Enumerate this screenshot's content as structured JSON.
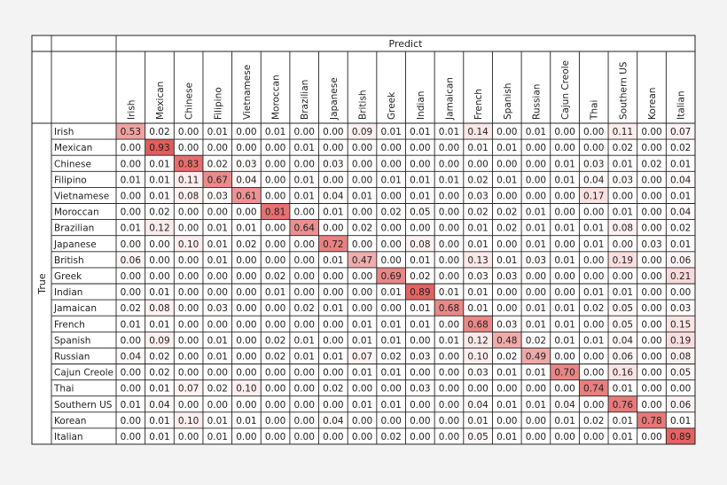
{
  "chart_data": {
    "type": "heatmap",
    "title": "",
    "xlabel": "Predict",
    "ylabel": "True",
    "categories": [
      "Irish",
      "Mexican",
      "Chinese",
      "Filipino",
      "Vietnamese",
      "Moroccan",
      "Brazilian",
      "Japanese",
      "British",
      "Greek",
      "Indian",
      "Jamaican",
      "French",
      "Spanish",
      "Russian",
      "Cajun Creole",
      "Thai",
      "Southern US",
      "Korean",
      "Italian"
    ],
    "matrix": [
      [
        0.53,
        0.02,
        0.0,
        0.01,
        0.0,
        0.01,
        0.0,
        0.0,
        0.09,
        0.01,
        0.01,
        0.01,
        0.14,
        0.0,
        0.01,
        0.0,
        0.0,
        0.11,
        0.0,
        0.07
      ],
      [
        0.0,
        0.93,
        0.0,
        0.0,
        0.0,
        0.0,
        0.01,
        0.0,
        0.0,
        0.0,
        0.0,
        0.0,
        0.01,
        0.01,
        0.0,
        0.0,
        0.0,
        0.02,
        0.0,
        0.02
      ],
      [
        0.0,
        0.01,
        0.83,
        0.02,
        0.03,
        0.0,
        0.0,
        0.03,
        0.0,
        0.0,
        0.0,
        0.0,
        0.0,
        0.0,
        0.0,
        0.01,
        0.03,
        0.01,
        0.02,
        0.01
      ],
      [
        0.01,
        0.01,
        0.11,
        0.67,
        0.04,
        0.0,
        0.01,
        0.0,
        0.0,
        0.01,
        0.01,
        0.01,
        0.02,
        0.01,
        0.0,
        0.01,
        0.04,
        0.03,
        0.0,
        0.04
      ],
      [
        0.0,
        0.01,
        0.08,
        0.03,
        0.61,
        0.0,
        0.01,
        0.04,
        0.01,
        0.0,
        0.01,
        0.0,
        0.03,
        0.0,
        0.0,
        0.0,
        0.17,
        0.0,
        0.0,
        0.01
      ],
      [
        0.0,
        0.02,
        0.0,
        0.0,
        0.0,
        0.81,
        0.0,
        0.01,
        0.0,
        0.02,
        0.05,
        0.0,
        0.02,
        0.02,
        0.01,
        0.0,
        0.0,
        0.01,
        0.0,
        0.04
      ],
      [
        0.01,
        0.12,
        0.0,
        0.01,
        0.01,
        0.0,
        0.64,
        0.0,
        0.02,
        0.0,
        0.0,
        0.0,
        0.01,
        0.02,
        0.01,
        0.01,
        0.01,
        0.08,
        0.0,
        0.02
      ],
      [
        0.0,
        0.0,
        0.1,
        0.01,
        0.02,
        0.0,
        0.0,
        0.72,
        0.0,
        0.0,
        0.08,
        0.0,
        0.01,
        0.0,
        0.01,
        0.0,
        0.01,
        0.0,
        0.03,
        0.01
      ],
      [
        0.06,
        0.0,
        0.0,
        0.01,
        0.0,
        0.0,
        0.0,
        0.01,
        0.47,
        0.0,
        0.01,
        0.0,
        0.13,
        0.01,
        0.03,
        0.01,
        0.0,
        0.19,
        0.0,
        0.06
      ],
      [
        0.0,
        0.0,
        0.0,
        0.0,
        0.0,
        0.02,
        0.0,
        0.0,
        0.0,
        0.69,
        0.02,
        0.0,
        0.03,
        0.03,
        0.0,
        0.0,
        0.0,
        0.0,
        0.0,
        0.21
      ],
      [
        0.0,
        0.01,
        0.0,
        0.0,
        0.0,
        0.01,
        0.0,
        0.0,
        0.0,
        0.01,
        0.89,
        0.01,
        0.01,
        0.0,
        0.0,
        0.0,
        0.01,
        0.01,
        0.0,
        0.0
      ],
      [
        0.02,
        0.08,
        0.0,
        0.03,
        0.0,
        0.0,
        0.02,
        0.01,
        0.0,
        0.0,
        0.01,
        0.68,
        0.01,
        0.0,
        0.01,
        0.01,
        0.02,
        0.05,
        0.0,
        0.03
      ],
      [
        0.01,
        0.01,
        0.0,
        0.0,
        0.0,
        0.0,
        0.0,
        0.0,
        0.01,
        0.01,
        0.01,
        0.0,
        0.68,
        0.03,
        0.01,
        0.01,
        0.0,
        0.05,
        0.0,
        0.15
      ],
      [
        0.0,
        0.09,
        0.0,
        0.01,
        0.0,
        0.02,
        0.01,
        0.0,
        0.01,
        0.01,
        0.0,
        0.01,
        0.12,
        0.48,
        0.02,
        0.01,
        0.01,
        0.04,
        0.0,
        0.19
      ],
      [
        0.04,
        0.02,
        0.0,
        0.01,
        0.0,
        0.02,
        0.01,
        0.01,
        0.07,
        0.02,
        0.03,
        0.0,
        0.1,
        0.02,
        0.49,
        0.0,
        0.0,
        0.06,
        0.0,
        0.08
      ],
      [
        0.0,
        0.02,
        0.0,
        0.0,
        0.0,
        0.0,
        0.0,
        0.0,
        0.01,
        0.01,
        0.0,
        0.0,
        0.03,
        0.01,
        0.01,
        0.7,
        0.0,
        0.16,
        0.0,
        0.05
      ],
      [
        0.0,
        0.01,
        0.07,
        0.02,
        0.1,
        0.0,
        0.0,
        0.02,
        0.0,
        0.0,
        0.03,
        0.0,
        0.0,
        0.0,
        0.0,
        0.0,
        0.74,
        0.01,
        0.0,
        0.0
      ],
      [
        0.01,
        0.04,
        0.0,
        0.0,
        0.0,
        0.0,
        0.0,
        0.0,
        0.01,
        0.01,
        0.0,
        0.0,
        0.04,
        0.01,
        0.01,
        0.04,
        0.0,
        0.76,
        0.0,
        0.06
      ],
      [
        0.0,
        0.01,
        0.1,
        0.01,
        0.01,
        0.0,
        0.0,
        0.04,
        0.0,
        0.0,
        0.0,
        0.0,
        0.01,
        0.0,
        0.0,
        0.01,
        0.02,
        0.01,
        0.78,
        0.01
      ],
      [
        0.0,
        0.01,
        0.0,
        0.01,
        0.0,
        0.0,
        0.0,
        0.0,
        0.0,
        0.02,
        0.0,
        0.0,
        0.05,
        0.01,
        0.0,
        0.0,
        0.0,
        0.01,
        0.0,
        0.89
      ]
    ],
    "value_range": [
      0,
      1
    ],
    "colors": {
      "low": "#ffffff",
      "high": "#e05050",
      "grid": "#222222",
      "background": "#f3f3f3"
    },
    "grid": true,
    "legend": "none"
  }
}
